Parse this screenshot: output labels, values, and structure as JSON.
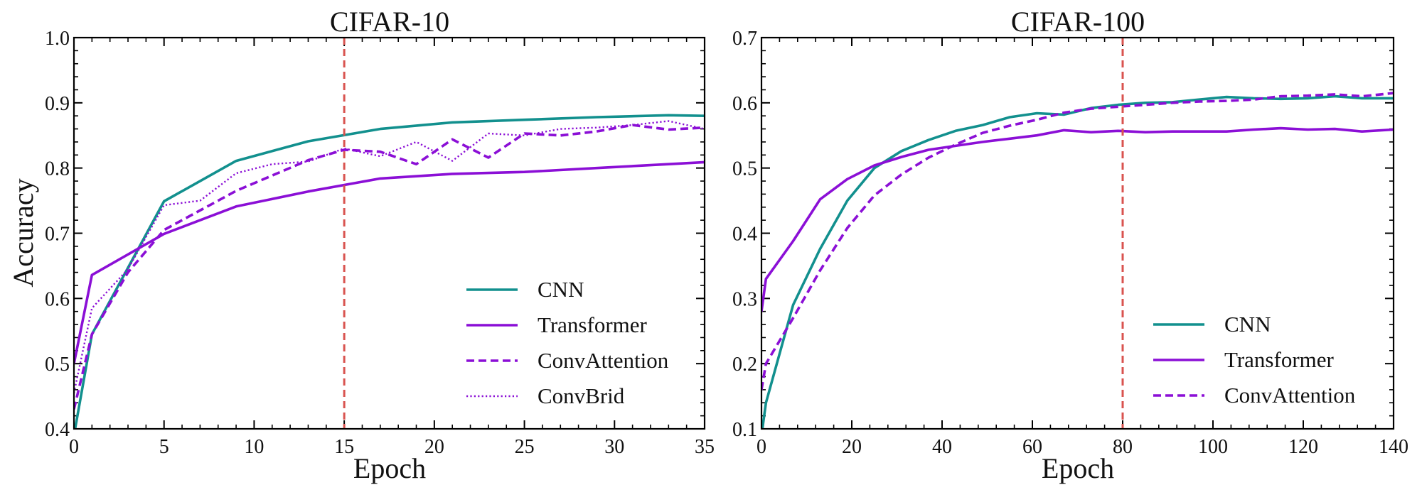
{
  "colors": {
    "cnn": "#12908e",
    "transformer": "#8b0fd6",
    "reference_line": "#d9534f",
    "axis": "#000000"
  },
  "chart_data": [
    {
      "type": "line",
      "title": "CIFAR-10",
      "xlabel": "Epoch",
      "ylabel": "Accuracy",
      "xlim": [
        0,
        35
      ],
      "ylim": [
        0.4,
        1.0
      ],
      "xticks": [
        "0",
        "5",
        "10",
        "15",
        "20",
        "25",
        "30",
        "35"
      ],
      "yticks": [
        "0.4",
        "0.5",
        "0.6",
        "0.7",
        "0.8",
        "0.9",
        "1.0"
      ],
      "vline": 15,
      "grid": false,
      "legend_position": "lower-right",
      "series": [
        {
          "name": "CNN",
          "color": "#12908e",
          "style": "solid",
          "x": [
            0,
            1,
            5,
            9,
            13,
            17,
            21,
            25,
            29,
            33,
            35
          ],
          "y": [
            0.39,
            0.545,
            0.749,
            0.811,
            0.841,
            0.86,
            0.87,
            0.874,
            0.878,
            0.881,
            0.88
          ]
        },
        {
          "name": "Transformer",
          "color": "#8b0fd6",
          "style": "solid",
          "x": [
            0,
            1,
            5,
            9,
            13,
            17,
            21,
            25,
            29,
            33,
            35
          ],
          "y": [
            0.5,
            0.636,
            0.699,
            0.741,
            0.764,
            0.784,
            0.791,
            0.794,
            0.8,
            0.806,
            0.809
          ]
        },
        {
          "name": "ConvAttention",
          "color": "#8b0fd6",
          "style": "dashed",
          "x": [
            0,
            1,
            3,
            5,
            9,
            13,
            15,
            17,
            19,
            21,
            23,
            25,
            27,
            29,
            31,
            33,
            35
          ],
          "y": [
            0.43,
            0.545,
            0.64,
            0.705,
            0.765,
            0.812,
            0.828,
            0.825,
            0.806,
            0.844,
            0.816,
            0.853,
            0.85,
            0.856,
            0.866,
            0.859,
            0.862
          ]
        },
        {
          "name": "ConvBrid",
          "color": "#8b0fd6",
          "style": "dotted",
          "x": [
            0,
            1,
            3,
            5,
            7,
            9,
            11,
            13,
            15,
            17,
            19,
            21,
            23,
            25,
            27,
            29,
            31,
            33,
            35
          ],
          "y": [
            0.455,
            0.585,
            0.645,
            0.743,
            0.75,
            0.792,
            0.806,
            0.81,
            0.83,
            0.818,
            0.84,
            0.811,
            0.853,
            0.85,
            0.86,
            0.862,
            0.866,
            0.872,
            0.86
          ]
        }
      ]
    },
    {
      "type": "line",
      "title": "CIFAR-100",
      "xlabel": "Epoch",
      "ylabel": "",
      "xlim": [
        0,
        140
      ],
      "ylim": [
        0.1,
        0.7
      ],
      "xticks": [
        "0",
        "20",
        "40",
        "60",
        "80",
        "100",
        "120",
        "140"
      ],
      "yticks": [
        "0.1",
        "0.2",
        "0.3",
        "0.4",
        "0.5",
        "0.6",
        "0.7"
      ],
      "vline": 80,
      "grid": false,
      "legend_position": "lower-right",
      "series": [
        {
          "name": "CNN",
          "color": "#12908e",
          "style": "solid",
          "x": [
            0,
            1,
            7,
            13,
            19,
            25,
            31,
            37,
            43,
            49,
            55,
            61,
            67,
            73,
            79,
            85,
            91,
            97,
            103,
            109,
            115,
            121,
            127,
            133,
            140
          ],
          "y": [
            0.09,
            0.14,
            0.29,
            0.376,
            0.45,
            0.5,
            0.526,
            0.543,
            0.557,
            0.566,
            0.578,
            0.584,
            0.582,
            0.592,
            0.597,
            0.6,
            0.601,
            0.605,
            0.609,
            0.607,
            0.606,
            0.607,
            0.61,
            0.607,
            0.607
          ]
        },
        {
          "name": "Transformer",
          "color": "#8b0fd6",
          "style": "solid",
          "x": [
            0,
            1,
            7,
            13,
            19,
            25,
            31,
            37,
            43,
            49,
            55,
            61,
            67,
            73,
            79,
            85,
            91,
            97,
            103,
            109,
            115,
            121,
            127,
            133,
            140
          ],
          "y": [
            0.28,
            0.33,
            0.388,
            0.452,
            0.483,
            0.504,
            0.517,
            0.528,
            0.534,
            0.54,
            0.545,
            0.55,
            0.558,
            0.555,
            0.557,
            0.555,
            0.556,
            0.556,
            0.556,
            0.559,
            0.561,
            0.559,
            0.56,
            0.556,
            0.559
          ]
        },
        {
          "name": "ConvAttention",
          "color": "#8b0fd6",
          "style": "dashed",
          "x": [
            0,
            1,
            7,
            13,
            19,
            25,
            31,
            37,
            43,
            49,
            55,
            61,
            67,
            73,
            79,
            85,
            91,
            97,
            103,
            109,
            115,
            121,
            127,
            133,
            140
          ],
          "y": [
            0.16,
            0.2,
            0.27,
            0.343,
            0.408,
            0.458,
            0.49,
            0.516,
            0.536,
            0.554,
            0.565,
            0.574,
            0.585,
            0.591,
            0.594,
            0.597,
            0.6,
            0.602,
            0.603,
            0.605,
            0.61,
            0.611,
            0.613,
            0.61,
            0.615
          ]
        }
      ]
    }
  ]
}
